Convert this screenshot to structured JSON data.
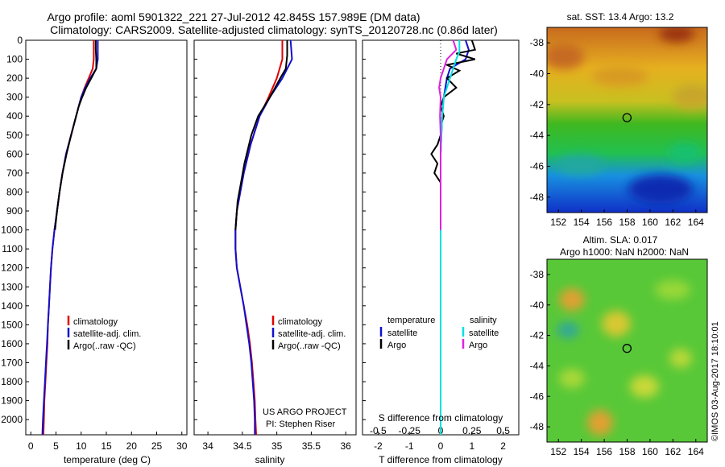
{
  "header": {
    "line1": "Argo profile: aoml 5901322_221 27-Jul-2012 42.845S 157.989E (DM data)",
    "line2": "Climatology: CARS2009. Satellite-adjusted climatology: synTS_20120728.nc (0.86d later)"
  },
  "colors": {
    "climatology": "#e00000",
    "satellite": "#1010d0",
    "argo": "#000000",
    "sat_salinity": "#00e0e0",
    "argo_salinity": "#e020e0"
  },
  "credit": "©IMOS 03-Aug-2017 18:10:01",
  "project": {
    "line1": "US ARGO PROJECT",
    "line2": "PI: Stephen Riser"
  },
  "legend_left": [
    "climatology",
    "satellite-adj. clim.",
    "Argo(..raw -QC)"
  ],
  "legend_diff": {
    "temp_title": "temperature",
    "sal_title": "salinity",
    "satellite": "satellite",
    "argo": "Argo"
  },
  "chart_data": [
    {
      "type": "line",
      "xlabel": "temperature (deg C)",
      "ylabel": "",
      "xlim": [
        -1,
        31
      ],
      "ylim": [
        2080,
        0
      ],
      "xticks": [
        0,
        5,
        10,
        15,
        20,
        25,
        30
      ],
      "yticks": [
        0,
        100,
        200,
        300,
        400,
        500,
        600,
        700,
        800,
        900,
        1000,
        1100,
        1200,
        1300,
        1400,
        1500,
        1600,
        1700,
        1800,
        1900,
        2000
      ],
      "series": [
        {
          "name": "climatology",
          "color": "#e00000",
          "points": [
            [
              12.5,
              0
            ],
            [
              12.5,
              50
            ],
            [
              12.5,
              100
            ],
            [
              12.3,
              150
            ],
            [
              11.5,
              200
            ],
            [
              10.7,
              250
            ],
            [
              10.0,
              300
            ],
            [
              9.5,
              350
            ],
            [
              9.0,
              400
            ],
            [
              8.0,
              500
            ],
            [
              7.0,
              600
            ],
            [
              6.3,
              700
            ],
            [
              5.7,
              800
            ],
            [
              5.2,
              900
            ],
            [
              4.7,
              1000
            ],
            [
              4.3,
              1100
            ],
            [
              4.0,
              1200
            ],
            [
              3.8,
              1300
            ],
            [
              3.6,
              1400
            ],
            [
              3.4,
              1500
            ],
            [
              3.3,
              1600
            ],
            [
              3.1,
              1700
            ],
            [
              2.9,
              1800
            ],
            [
              2.7,
              1900
            ],
            [
              2.6,
              2000
            ],
            [
              2.5,
              2080
            ]
          ]
        },
        {
          "name": "satellite-adj. clim.",
          "color": "#1010d0",
          "points": [
            [
              13.3,
              0
            ],
            [
              13.3,
              50
            ],
            [
              13.3,
              100
            ],
            [
              13.0,
              150
            ],
            [
              11.8,
              200
            ],
            [
              10.8,
              250
            ],
            [
              10.0,
              300
            ],
            [
              9.5,
              350
            ],
            [
              9.0,
              400
            ],
            [
              8.0,
              500
            ],
            [
              7.0,
              600
            ],
            [
              6.3,
              700
            ],
            [
              5.7,
              800
            ],
            [
              5.2,
              900
            ],
            [
              4.7,
              1000
            ],
            [
              4.3,
              1100
            ],
            [
              4.0,
              1200
            ],
            [
              3.8,
              1300
            ],
            [
              3.6,
              1400
            ],
            [
              3.4,
              1500
            ],
            [
              3.2,
              1600
            ],
            [
              3.0,
              1700
            ],
            [
              2.8,
              1800
            ],
            [
              2.6,
              1900
            ],
            [
              2.4,
              2000
            ],
            [
              2.3,
              2080
            ]
          ]
        },
        {
          "name": "Argo(..raw -QC)",
          "color": "#000000",
          "points": [
            [
              12.9,
              0
            ],
            [
              12.9,
              50
            ],
            [
              13.0,
              100
            ],
            [
              13.0,
              150
            ],
            [
              12.0,
              200
            ],
            [
              11.0,
              250
            ],
            [
              10.2,
              300
            ],
            [
              9.5,
              350
            ],
            [
              9.0,
              400
            ],
            [
              8.0,
              500
            ],
            [
              7.1,
              600
            ],
            [
              6.3,
              700
            ],
            [
              5.7,
              800
            ],
            [
              5.2,
              900
            ],
            [
              4.8,
              1000
            ]
          ]
        }
      ]
    },
    {
      "type": "line",
      "xlabel": "salinity",
      "ylabel": "",
      "xlim": [
        33.8,
        36.15
      ],
      "ylim": [
        2080,
        0
      ],
      "xticks": [
        34,
        34.5,
        35,
        35.5,
        36
      ],
      "series": [
        {
          "name": "climatology",
          "color": "#e00000",
          "points": [
            [
              35.08,
              0
            ],
            [
              35.08,
              100
            ],
            [
              35.0,
              200
            ],
            [
              34.88,
              300
            ],
            [
              34.75,
              400
            ],
            [
              34.62,
              550
            ],
            [
              34.52,
              700
            ],
            [
              34.47,
              800
            ],
            [
              34.42,
              900
            ],
            [
              34.4,
              1000
            ],
            [
              34.4,
              1100
            ],
            [
              34.42,
              1200
            ],
            [
              34.47,
              1300
            ],
            [
              34.52,
              1400
            ],
            [
              34.57,
              1500
            ],
            [
              34.61,
              1600
            ],
            [
              34.64,
              1700
            ],
            [
              34.66,
              1800
            ],
            [
              34.68,
              1900
            ],
            [
              34.69,
              2000
            ],
            [
              34.7,
              2080
            ]
          ]
        },
        {
          "name": "satellite-adj. clim.",
          "color": "#1010d0",
          "points": [
            [
              35.2,
              0
            ],
            [
              35.22,
              100
            ],
            [
              35.08,
              200
            ],
            [
              34.9,
              300
            ],
            [
              34.75,
              400
            ],
            [
              34.62,
              550
            ],
            [
              34.52,
              700
            ],
            [
              34.47,
              800
            ],
            [
              34.42,
              900
            ],
            [
              34.4,
              1000
            ],
            [
              34.4,
              1100
            ],
            [
              34.42,
              1200
            ],
            [
              34.47,
              1300
            ],
            [
              34.52,
              1400
            ],
            [
              34.56,
              1500
            ],
            [
              34.6,
              1600
            ],
            [
              34.63,
              1700
            ],
            [
              34.65,
              1800
            ],
            [
              34.67,
              1900
            ],
            [
              34.68,
              2000
            ],
            [
              34.68,
              2080
            ]
          ]
        },
        {
          "name": "Argo(..raw -QC)",
          "color": "#000000",
          "points": [
            [
              35.15,
              0
            ],
            [
              35.15,
              80
            ],
            [
              35.13,
              150
            ],
            [
              35.05,
              200
            ],
            [
              34.9,
              300
            ],
            [
              34.73,
              400
            ],
            [
              34.63,
              500
            ],
            [
              34.53,
              650
            ],
            [
              34.48,
              750
            ],
            [
              34.43,
              850
            ],
            [
              34.41,
              950
            ],
            [
              34.4,
              1000
            ]
          ]
        }
      ]
    },
    {
      "type": "line",
      "xlabel": "T difference from climatology",
      "title": "S difference from climatology",
      "xlim": [
        -2.5,
        2.5
      ],
      "ylim": [
        2080,
        0
      ],
      "xticks": [
        -2,
        -1,
        0,
        1,
        2
      ],
      "sticks": [
        -0.5,
        -0.25,
        0,
        0.25,
        0.5
      ],
      "series": [
        {
          "name": "temperature satellite",
          "color": "#1010d0",
          "points": [
            [
              0.8,
              0
            ],
            [
              0.9,
              50
            ],
            [
              0.8,
              100
            ],
            [
              0.3,
              150
            ],
            [
              0.2,
              200
            ],
            [
              0.1,
              300
            ],
            [
              0.05,
              400
            ],
            [
              0,
              600
            ],
            [
              0,
              800
            ],
            [
              0,
              1000
            ],
            [
              0,
              1200
            ],
            [
              0,
              1400
            ],
            [
              0,
              1600
            ],
            [
              0,
              1800
            ],
            [
              0,
              2000
            ],
            [
              0,
              2080
            ]
          ]
        },
        {
          "name": "temperature Argo",
          "color": "#000000",
          "points": [
            [
              1.0,
              0
            ],
            [
              1.1,
              50
            ],
            [
              0.5,
              70
            ],
            [
              1.1,
              100
            ],
            [
              0.2,
              130
            ],
            [
              0.6,
              160
            ],
            [
              0.2,
              200
            ],
            [
              0.5,
              250
            ],
            [
              0.1,
              300
            ],
            [
              0,
              350
            ],
            [
              0.1,
              400
            ],
            [
              0,
              450
            ],
            [
              0,
              500
            ],
            [
              -0.1,
              550
            ],
            [
              -0.3,
              600
            ],
            [
              -0.1,
              650
            ],
            [
              -0.2,
              700
            ],
            [
              0,
              750
            ],
            [
              0,
              800
            ],
            [
              0,
              900
            ],
            [
              0,
              1000
            ]
          ]
        },
        {
          "name": "salinity satellite",
          "color": "#00e0e0",
          "points": [
            [
              0.6,
              0
            ],
            [
              0.6,
              60
            ],
            [
              0.5,
              100
            ],
            [
              0.3,
              200
            ],
            [
              0.1,
              300
            ],
            [
              0.05,
              400
            ],
            [
              0,
              600
            ],
            [
              0,
              800
            ],
            [
              0,
              1000
            ],
            [
              0,
              1200
            ],
            [
              0,
              1400
            ],
            [
              0,
              1600
            ],
            [
              0,
              1800
            ],
            [
              0,
              2000
            ],
            [
              0,
              2080
            ]
          ]
        },
        {
          "name": "salinity Argo",
          "color": "#e020e0",
          "points": [
            [
              0.4,
              0
            ],
            [
              0.5,
              50
            ],
            [
              0.2,
              100
            ],
            [
              0.1,
              150
            ],
            [
              0,
              200
            ],
            [
              -0.05,
              250
            ],
            [
              0,
              300
            ],
            [
              -0.02,
              400
            ],
            [
              0,
              500
            ],
            [
              0,
              600
            ],
            [
              0,
              800
            ],
            [
              0,
              1000
            ]
          ]
        }
      ]
    },
    {
      "type": "heatmap",
      "title": "sat. SST: 13.4  Argo: 13.2",
      "xticks": [
        152,
        154,
        156,
        158,
        160,
        162,
        164
      ],
      "yticks": [
        -38,
        -40,
        -42,
        -44,
        -46,
        -48
      ],
      "xlim": [
        151,
        165
      ],
      "ylim": [
        -49,
        -37
      ],
      "marker": [
        157.99,
        -42.85
      ]
    },
    {
      "type": "heatmap",
      "title": "Altim. SLA: 0.017",
      "subtitle": "Argo h1000: NaN h2000: NaN",
      "xticks": [
        152,
        154,
        156,
        158,
        160,
        162,
        164
      ],
      "yticks": [
        -38,
        -40,
        -42,
        -44,
        -46,
        -48
      ],
      "xlim": [
        151,
        165
      ],
      "ylim": [
        -49,
        -37
      ],
      "marker": [
        157.99,
        -42.85
      ]
    }
  ]
}
